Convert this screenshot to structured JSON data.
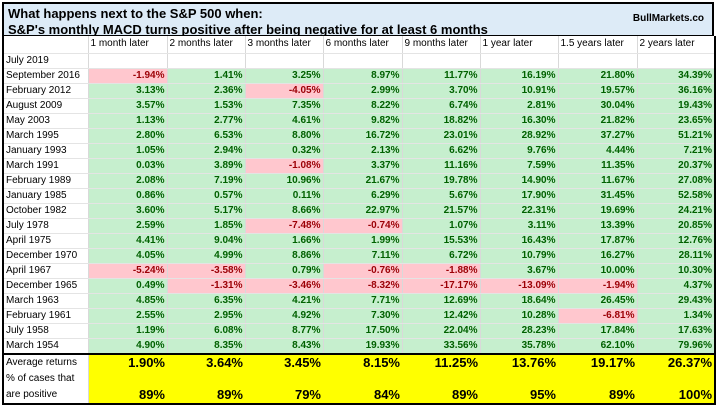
{
  "title": {
    "line1": "What happens next to the S&P 500 when:",
    "line2": "S&P's monthly MACD turns positive after being negative for at least 6 months",
    "brand": "BullMarkets.co"
  },
  "columns": [
    "1 month later",
    "2 months later",
    "3 months later",
    "6 months later",
    "9 months later",
    "1 year later",
    "1.5 years later",
    "2 years later"
  ],
  "current_row": "July 2019",
  "colors": {
    "positive_bg": "#c6efce",
    "positive_text": "#006100",
    "negative_bg": "#ffc7ce",
    "negative_text": "#9c0006",
    "summary_bg": "#ffff00",
    "title_bg": "#ddebf7"
  },
  "rows": [
    {
      "date": "September 2016",
      "values": [
        "-1.94%",
        "1.41%",
        "3.25%",
        "8.97%",
        "11.77%",
        "16.19%",
        "21.80%",
        "34.39%"
      ]
    },
    {
      "date": "February 2012",
      "values": [
        "3.13%",
        "2.36%",
        "-4.05%",
        "2.99%",
        "3.70%",
        "10.91%",
        "19.57%",
        "36.16%"
      ]
    },
    {
      "date": "August 2009",
      "values": [
        "3.57%",
        "1.53%",
        "7.35%",
        "8.22%",
        "6.74%",
        "2.81%",
        "30.04%",
        "19.43%"
      ]
    },
    {
      "date": "May 2003",
      "values": [
        "1.13%",
        "2.77%",
        "4.61%",
        "9.82%",
        "18.82%",
        "16.30%",
        "21.82%",
        "23.65%"
      ]
    },
    {
      "date": "March 1995",
      "values": [
        "2.80%",
        "6.53%",
        "8.80%",
        "16.72%",
        "23.01%",
        "28.92%",
        "37.27%",
        "51.21%"
      ]
    },
    {
      "date": "January 1993",
      "values": [
        "1.05%",
        "2.94%",
        "0.32%",
        "2.13%",
        "6.62%",
        "9.76%",
        "4.44%",
        "7.21%"
      ]
    },
    {
      "date": "March 1991",
      "values": [
        "0.03%",
        "3.89%",
        "-1.08%",
        "3.37%",
        "11.16%",
        "7.59%",
        "11.35%",
        "20.37%"
      ]
    },
    {
      "date": "February 1989",
      "values": [
        "2.08%",
        "7.19%",
        "10.96%",
        "21.67%",
        "19.78%",
        "14.90%",
        "11.67%",
        "27.08%"
      ]
    },
    {
      "date": "January 1985",
      "values": [
        "0.86%",
        "0.57%",
        "0.11%",
        "6.29%",
        "5.67%",
        "17.90%",
        "31.45%",
        "52.58%"
      ]
    },
    {
      "date": "October 1982",
      "values": [
        "3.60%",
        "5.17%",
        "8.66%",
        "22.97%",
        "21.57%",
        "22.31%",
        "19.69%",
        "24.21%"
      ]
    },
    {
      "date": "July 1978",
      "values": [
        "2.59%",
        "1.85%",
        "-7.48%",
        "-0.74%",
        "1.07%",
        "3.11%",
        "13.39%",
        "20.85%"
      ]
    },
    {
      "date": "April 1975",
      "values": [
        "4.41%",
        "9.04%",
        "1.66%",
        "1.99%",
        "15.53%",
        "16.43%",
        "17.87%",
        "12.76%"
      ]
    },
    {
      "date": "December 1970",
      "values": [
        "4.05%",
        "4.99%",
        "8.86%",
        "7.11%",
        "6.72%",
        "10.79%",
        "16.27%",
        "28.11%"
      ]
    },
    {
      "date": "April 1967",
      "values": [
        "-5.24%",
        "-3.58%",
        "0.79%",
        "-0.76%",
        "-1.88%",
        "3.67%",
        "10.00%",
        "10.30%"
      ]
    },
    {
      "date": "December 1965",
      "values": [
        "0.49%",
        "-1.31%",
        "-3.46%",
        "-8.32%",
        "-17.17%",
        "-13.09%",
        "-1.94%",
        "4.37%"
      ]
    },
    {
      "date": "March 1963",
      "values": [
        "4.85%",
        "6.35%",
        "4.21%",
        "7.71%",
        "12.69%",
        "18.64%",
        "26.45%",
        "29.43%"
      ]
    },
    {
      "date": "February 1961",
      "values": [
        "2.55%",
        "2.95%",
        "4.92%",
        "7.30%",
        "12.42%",
        "10.28%",
        "-6.81%",
        "1.34%"
      ]
    },
    {
      "date": "July 1958",
      "values": [
        "1.19%",
        "6.08%",
        "8.77%",
        "17.50%",
        "22.04%",
        "28.23%",
        "17.84%",
        "17.63%"
      ]
    },
    {
      "date": "March 1954",
      "values": [
        "4.90%",
        "8.35%",
        "8.43%",
        "19.93%",
        "33.56%",
        "35.78%",
        "62.10%",
        "79.96%"
      ]
    }
  ],
  "summary": {
    "average_label": "Average returns",
    "average_values": [
      "1.90%",
      "3.64%",
      "3.45%",
      "8.15%",
      "11.25%",
      "13.76%",
      "19.17%",
      "26.37%"
    ],
    "positive_label_line1": "% of cases that",
    "positive_label_line2": "are positive",
    "positive_values": [
      "89%",
      "89%",
      "79%",
      "84%",
      "89%",
      "95%",
      "89%",
      "100%"
    ]
  }
}
